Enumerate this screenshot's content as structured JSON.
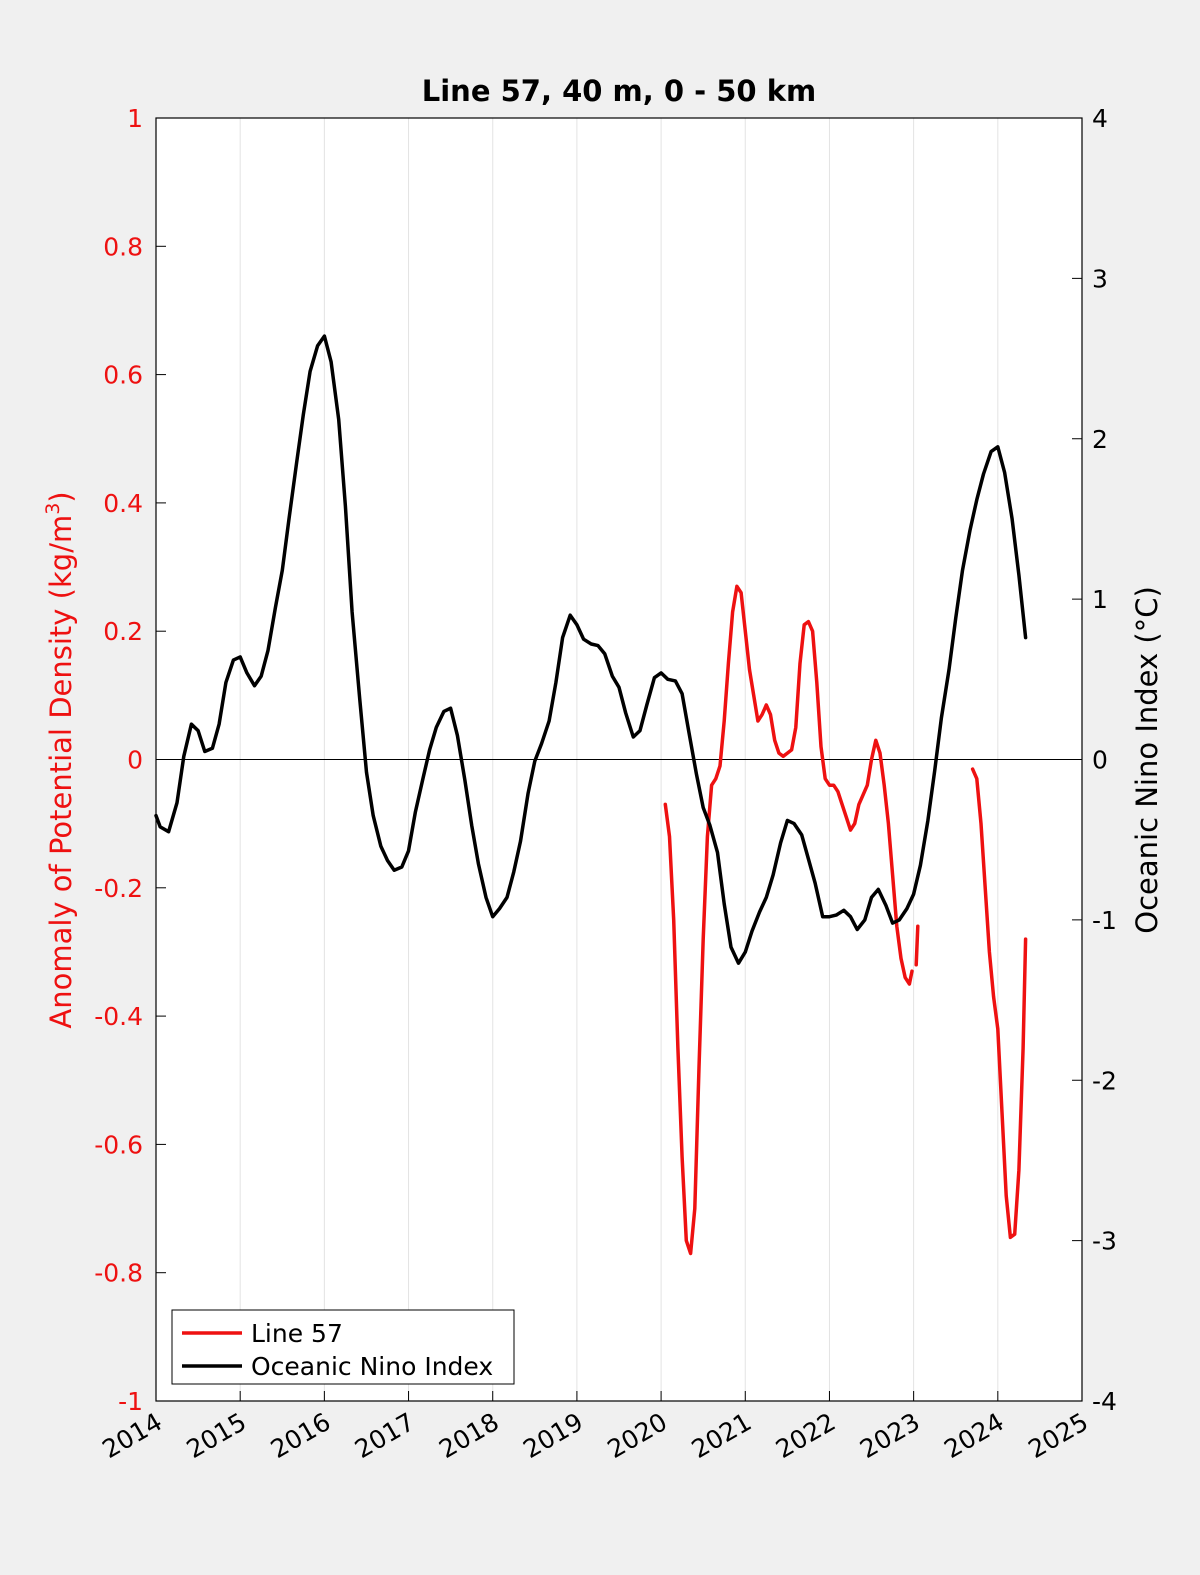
{
  "chart_data": {
    "type": "line",
    "title": "Line 57, 40 m, 0 - 50 km",
    "xlabel": "",
    "ylabel_left": "Anomaly of Potential Density (kg/m",
    "ylabel_left_sup": "3",
    "ylabel_left_close": ")",
    "ylabel_right": "Oceanic Nino Index (°C)",
    "xlim": [
      2014,
      2025
    ],
    "ylim_left": [
      -1,
      1
    ],
    "ylim_right": [
      -4,
      4
    ],
    "x_ticks": [
      2014,
      2015,
      2016,
      2017,
      2018,
      2019,
      2020,
      2021,
      2022,
      2023,
      2024,
      2025
    ],
    "x_tick_labels": [
      "2014",
      "2015",
      "2016",
      "2017",
      "2018",
      "2019",
      "2020",
      "2021",
      "2022",
      "2023",
      "2024",
      "2025"
    ],
    "y_left_ticks": [
      -1,
      -0.8,
      -0.6,
      -0.4,
      -0.2,
      0,
      0.2,
      0.4,
      0.6,
      0.8,
      1
    ],
    "y_left_tick_labels": [
      "-1",
      "-0.8",
      "-0.6",
      "-0.4",
      "-0.2",
      "0",
      "0.2",
      "0.4",
      "0.6",
      "0.8",
      "1"
    ],
    "y_right_ticks": [
      -4,
      -3,
      -2,
      -1,
      0,
      1,
      2,
      3,
      4
    ],
    "y_right_tick_labels": [
      "-4",
      "-3",
      "-2",
      "-1",
      "0",
      "1",
      "2",
      "3",
      "4"
    ],
    "grid": "vertical",
    "zero_line": true,
    "legend_position": "bottom-left",
    "colors": {
      "line57": "#ee1111",
      "oni": "#000000",
      "left_axis": "#ee1111",
      "right_axis": "#000000"
    },
    "series": [
      {
        "name": "Line 57",
        "axis": "left",
        "color": "#ee1111",
        "segments": [
          [
            [
              2020.05,
              -0.07
            ],
            [
              2020.1,
              -0.12
            ],
            [
              2020.15,
              -0.25
            ],
            [
              2020.2,
              -0.45
            ],
            [
              2020.25,
              -0.62
            ],
            [
              2020.3,
              -0.75
            ],
            [
              2020.35,
              -0.77
            ],
            [
              2020.4,
              -0.7
            ],
            [
              2020.45,
              -0.48
            ],
            [
              2020.5,
              -0.28
            ],
            [
              2020.55,
              -0.12
            ],
            [
              2020.6,
              -0.04
            ],
            [
              2020.65,
              -0.03
            ],
            [
              2020.7,
              -0.01
            ],
            [
              2020.75,
              0.06
            ],
            [
              2020.8,
              0.15
            ],
            [
              2020.85,
              0.23
            ],
            [
              2020.9,
              0.27
            ],
            [
              2020.95,
              0.26
            ],
            [
              2021.0,
              0.2
            ],
            [
              2021.05,
              0.14
            ],
            [
              2021.1,
              0.1
            ],
            [
              2021.15,
              0.06
            ],
            [
              2021.2,
              0.07
            ],
            [
              2021.25,
              0.085
            ],
            [
              2021.3,
              0.07
            ],
            [
              2021.35,
              0.03
            ],
            [
              2021.4,
              0.01
            ],
            [
              2021.45,
              0.005
            ],
            [
              2021.5,
              0.01
            ],
            [
              2021.55,
              0.015
            ],
            [
              2021.6,
              0.05
            ],
            [
              2021.65,
              0.15
            ],
            [
              2021.7,
              0.21
            ],
            [
              2021.75,
              0.215
            ],
            [
              2021.8,
              0.2
            ],
            [
              2021.85,
              0.12
            ],
            [
              2021.9,
              0.02
            ],
            [
              2021.95,
              -0.03
            ],
            [
              2022.0,
              -0.04
            ],
            [
              2022.05,
              -0.04
            ],
            [
              2022.1,
              -0.05
            ],
            [
              2022.15,
              -0.07
            ],
            [
              2022.2,
              -0.09
            ],
            [
              2022.25,
              -0.11
            ],
            [
              2022.3,
              -0.1
            ],
            [
              2022.35,
              -0.07
            ],
            [
              2022.4,
              -0.055
            ],
            [
              2022.45,
              -0.04
            ],
            [
              2022.5,
              0.0
            ],
            [
              2022.55,
              0.03
            ],
            [
              2022.6,
              0.01
            ],
            [
              2022.65,
              -0.04
            ],
            [
              2022.7,
              -0.1
            ],
            [
              2022.75,
              -0.18
            ],
            [
              2022.8,
              -0.26
            ],
            [
              2022.85,
              -0.31
            ],
            [
              2022.9,
              -0.34
            ],
            [
              2022.95,
              -0.35
            ],
            [
              2022.98,
              -0.33
            ]
          ],
          [
            [
              2023.03,
              -0.32
            ],
            [
              2023.05,
              -0.26
            ]
          ],
          [
            [
              2023.7,
              -0.015
            ],
            [
              2023.75,
              -0.03
            ],
            [
              2023.8,
              -0.1
            ],
            [
              2023.85,
              -0.2
            ],
            [
              2023.9,
              -0.3
            ],
            [
              2023.95,
              -0.37
            ],
            [
              2024.0,
              -0.42
            ],
            [
              2024.05,
              -0.55
            ],
            [
              2024.1,
              -0.68
            ],
            [
              2024.15,
              -0.745
            ],
            [
              2024.2,
              -0.74
            ],
            [
              2024.25,
              -0.64
            ],
            [
              2024.3,
              -0.45
            ],
            [
              2024.33,
              -0.28
            ]
          ]
        ]
      },
      {
        "name": "Oceanic Nino Index",
        "axis": "right",
        "color": "#000000",
        "segments": [
          [
            [
              2014.0,
              -0.35
            ],
            [
              2014.05,
              -0.42
            ],
            [
              2014.15,
              -0.45
            ],
            [
              2014.25,
              -0.27
            ],
            [
              2014.33,
              0.02
            ],
            [
              2014.42,
              0.22
            ],
            [
              2014.5,
              0.18
            ],
            [
              2014.58,
              0.05
            ],
            [
              2014.67,
              0.07
            ],
            [
              2014.75,
              0.22
            ],
            [
              2014.83,
              0.48
            ],
            [
              2014.92,
              0.62
            ],
            [
              2015.0,
              0.64
            ],
            [
              2015.08,
              0.54
            ],
            [
              2015.17,
              0.46
            ],
            [
              2015.25,
              0.52
            ],
            [
              2015.33,
              0.68
            ],
            [
              2015.42,
              0.95
            ],
            [
              2015.5,
              1.18
            ],
            [
              2015.58,
              1.5
            ],
            [
              2015.67,
              1.85
            ],
            [
              2015.75,
              2.15
            ],
            [
              2015.83,
              2.42
            ],
            [
              2015.92,
              2.58
            ],
            [
              2016.0,
              2.64
            ],
            [
              2016.08,
              2.48
            ],
            [
              2016.17,
              2.12
            ],
            [
              2016.25,
              1.58
            ],
            [
              2016.33,
              0.92
            ],
            [
              2016.42,
              0.38
            ],
            [
              2016.5,
              -0.08
            ],
            [
              2016.58,
              -0.35
            ],
            [
              2016.67,
              -0.54
            ],
            [
              2016.75,
              -0.63
            ],
            [
              2016.83,
              -0.69
            ],
            [
              2016.92,
              -0.67
            ],
            [
              2017.0,
              -0.57
            ],
            [
              2017.08,
              -0.33
            ],
            [
              2017.17,
              -0.12
            ],
            [
              2017.25,
              0.06
            ],
            [
              2017.33,
              0.2
            ],
            [
              2017.42,
              0.3
            ],
            [
              2017.5,
              0.32
            ],
            [
              2017.58,
              0.15
            ],
            [
              2017.67,
              -0.13
            ],
            [
              2017.75,
              -0.41
            ],
            [
              2017.83,
              -0.65
            ],
            [
              2017.92,
              -0.86
            ],
            [
              2018.0,
              -0.98
            ],
            [
              2018.08,
              -0.93
            ],
            [
              2018.17,
              -0.86
            ],
            [
              2018.25,
              -0.7
            ],
            [
              2018.33,
              -0.51
            ],
            [
              2018.42,
              -0.21
            ],
            [
              2018.5,
              -0.01
            ],
            [
              2018.58,
              0.1
            ],
            [
              2018.67,
              0.24
            ],
            [
              2018.75,
              0.48
            ],
            [
              2018.83,
              0.76
            ],
            [
              2018.92,
              0.9
            ],
            [
              2019.0,
              0.84
            ],
            [
              2019.08,
              0.75
            ],
            [
              2019.17,
              0.72
            ],
            [
              2019.25,
              0.71
            ],
            [
              2019.33,
              0.66
            ],
            [
              2019.42,
              0.52
            ],
            [
              2019.5,
              0.45
            ],
            [
              2019.58,
              0.29
            ],
            [
              2019.67,
              0.14
            ],
            [
              2019.75,
              0.18
            ],
            [
              2019.83,
              0.34
            ],
            [
              2019.92,
              0.51
            ],
            [
              2020.0,
              0.54
            ],
            [
              2020.08,
              0.5
            ],
            [
              2020.17,
              0.49
            ],
            [
              2020.25,
              0.41
            ],
            [
              2020.33,
              0.17
            ],
            [
              2020.42,
              -0.09
            ],
            [
              2020.5,
              -0.3
            ],
            [
              2020.58,
              -0.41
            ],
            [
              2020.67,
              -0.58
            ],
            [
              2020.75,
              -0.9
            ],
            [
              2020.83,
              -1.17
            ],
            [
              2020.92,
              -1.27
            ],
            [
              2021.0,
              -1.2
            ],
            [
              2021.08,
              -1.07
            ],
            [
              2021.17,
              -0.95
            ],
            [
              2021.25,
              -0.86
            ],
            [
              2021.33,
              -0.72
            ],
            [
              2021.42,
              -0.52
            ],
            [
              2021.5,
              -0.38
            ],
            [
              2021.58,
              -0.4
            ],
            [
              2021.67,
              -0.47
            ],
            [
              2021.75,
              -0.62
            ],
            [
              2021.83,
              -0.77
            ],
            [
              2021.92,
              -0.98
            ],
            [
              2022.0,
              -0.98
            ],
            [
              2022.08,
              -0.97
            ],
            [
              2022.17,
              -0.94
            ],
            [
              2022.25,
              -0.98
            ],
            [
              2022.33,
              -1.06
            ],
            [
              2022.42,
              -1.0
            ],
            [
              2022.5,
              -0.86
            ],
            [
              2022.58,
              -0.81
            ],
            [
              2022.67,
              -0.91
            ],
            [
              2022.75,
              -1.02
            ],
            [
              2022.83,
              -1.0
            ],
            [
              2022.92,
              -0.93
            ],
            [
              2023.0,
              -0.84
            ],
            [
              2023.08,
              -0.66
            ],
            [
              2023.17,
              -0.38
            ],
            [
              2023.25,
              -0.07
            ],
            [
              2023.33,
              0.26
            ],
            [
              2023.42,
              0.56
            ],
            [
              2023.5,
              0.88
            ],
            [
              2023.58,
              1.18
            ],
            [
              2023.67,
              1.43
            ],
            [
              2023.75,
              1.62
            ],
            [
              2023.83,
              1.78
            ],
            [
              2023.92,
              1.92
            ],
            [
              2024.0,
              1.95
            ],
            [
              2024.08,
              1.79
            ],
            [
              2024.17,
              1.5
            ],
            [
              2024.25,
              1.15
            ],
            [
              2024.33,
              0.76
            ]
          ]
        ]
      }
    ]
  }
}
